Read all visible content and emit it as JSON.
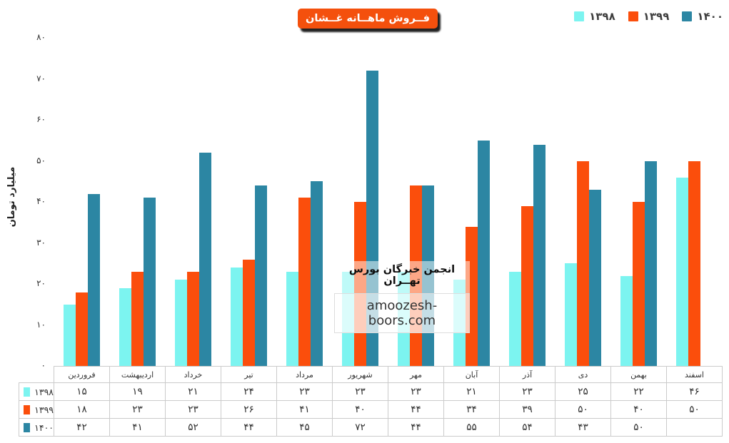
{
  "header": {
    "title": "فــروش ماهــانه غــشان"
  },
  "watermark": {
    "line1": "انجمن خبرگان بورس تهــران",
    "line2": "amoozesh-boors.com"
  },
  "colors": {
    "series_1398": "#7CF4F0",
    "series_1399": "#FB4E0C",
    "series_1400": "#2C86A3",
    "title_box": "#F4500D",
    "table_border": "#CBCBCB"
  },
  "chart_data": {
    "type": "bar",
    "title": "فــروش ماهــانه غــشان",
    "ylabel": "میلیارد تومان",
    "ylim": [
      0,
      80
    ],
    "ytick_step": 10,
    "ytick_labels": [
      "۰",
      "۱۰",
      "۲۰",
      "۳۰",
      "۴۰",
      "۵۰",
      "۶۰",
      "۷۰",
      "۸۰"
    ],
    "grid": false,
    "legend_position": "top-right",
    "categories": [
      "فروردین",
      "اردیبهشت",
      "خرداد",
      "تیر",
      "مرداد",
      "شهریور",
      "مهر",
      "آبان",
      "آذر",
      "دی",
      "بهمن",
      "اسفند"
    ],
    "series": [
      {
        "name": "۱۳۹۸",
        "year_value": 1398,
        "color": "#7CF4F0",
        "values": [
          15,
          19,
          21,
          24,
          23,
          23,
          23,
          21,
          23,
          25,
          22,
          46
        ]
      },
      {
        "name": "۱۳۹۹",
        "year_value": 1399,
        "color": "#FB4E0C",
        "values": [
          18,
          23,
          23,
          26,
          41,
          40,
          44,
          34,
          39,
          50,
          40,
          50
        ]
      },
      {
        "name": "۱۴۰۰",
        "year_value": 1400,
        "color": "#2C86A3",
        "values": [
          42,
          41,
          52,
          44,
          45,
          72,
          44,
          55,
          54,
          43,
          50,
          null
        ]
      }
    ]
  }
}
